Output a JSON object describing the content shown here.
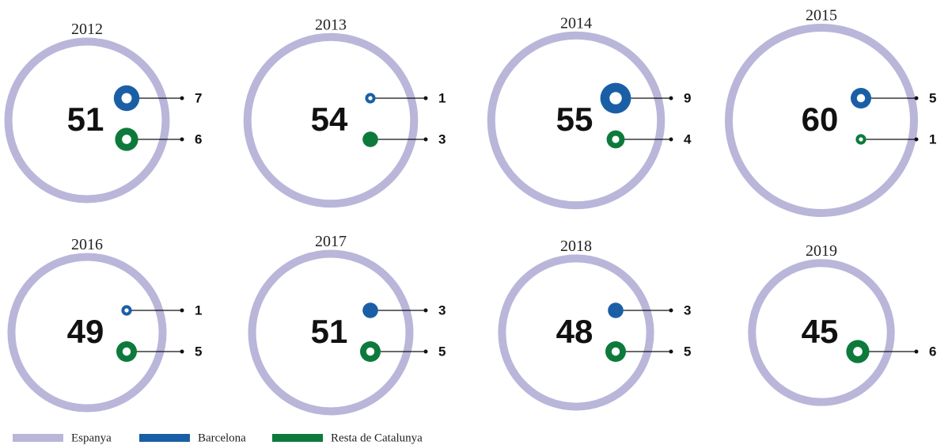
{
  "chart_data": {
    "type": "bubble",
    "categories": [
      "2012",
      "2013",
      "2014",
      "2015",
      "2016",
      "2017",
      "2018",
      "2019"
    ],
    "series": [
      {
        "name": "Espanya",
        "color": "#b9b6da",
        "values": [
          51,
          54,
          55,
          60,
          49,
          51,
          48,
          45
        ]
      },
      {
        "name": "Barcelona",
        "color": "#1a5fa6",
        "values": [
          7,
          1,
          9,
          5,
          1,
          3,
          3,
          null
        ]
      },
      {
        "name": "Resta de Catalunya",
        "color": "#0d7a3c",
        "values": [
          6,
          3,
          4,
          1,
          5,
          5,
          5,
          6
        ]
      }
    ]
  }
}
